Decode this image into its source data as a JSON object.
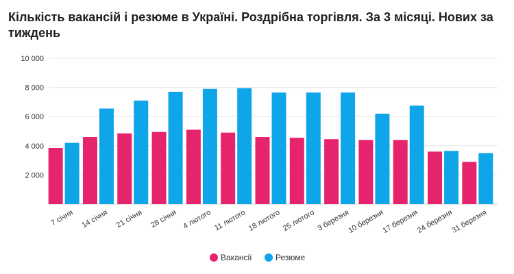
{
  "title": "Кількість вакансій і резюме в Україні. Роздрібна торгівля. За 3 місяці. Нових за тиждень",
  "chart_data": {
    "type": "bar",
    "title": "Кількість вакансій і резюме в Україні. Роздрібна торгівля. За 3 місяці. Нових за тиждень",
    "categories": [
      "7 січня",
      "14 січня",
      "21 січня",
      "28 січня",
      "4 лютого",
      "11 лютого",
      "18 лютого",
      "25 лютого",
      "3 березня",
      "10 березня",
      "17 березня",
      "24 березня",
      "31 березня"
    ],
    "series": [
      {
        "name": "Вакансії",
        "color": "#e6246e",
        "values": [
          3850,
          4600,
          4850,
          4950,
          5100,
          4900,
          4600,
          4550,
          4450,
          4400,
          4400,
          3600,
          2900
        ]
      },
      {
        "name": "Резюме",
        "color": "#0ea5e9",
        "values": [
          4200,
          6550,
          7100,
          7700,
          7900,
          7950,
          7650,
          7650,
          7650,
          6200,
          6750,
          3650,
          3500
        ]
      }
    ],
    "ylim": [
      0,
      10000
    ],
    "yticks": [
      0,
      2000,
      4000,
      6000,
      8000,
      10000
    ],
    "ytick_labels": [
      "",
      "2 000",
      "4 000",
      "6 000",
      "8 000",
      "10 000"
    ],
    "grid": true,
    "legend": "bottom-center",
    "xlabel": "",
    "ylabel": ""
  }
}
